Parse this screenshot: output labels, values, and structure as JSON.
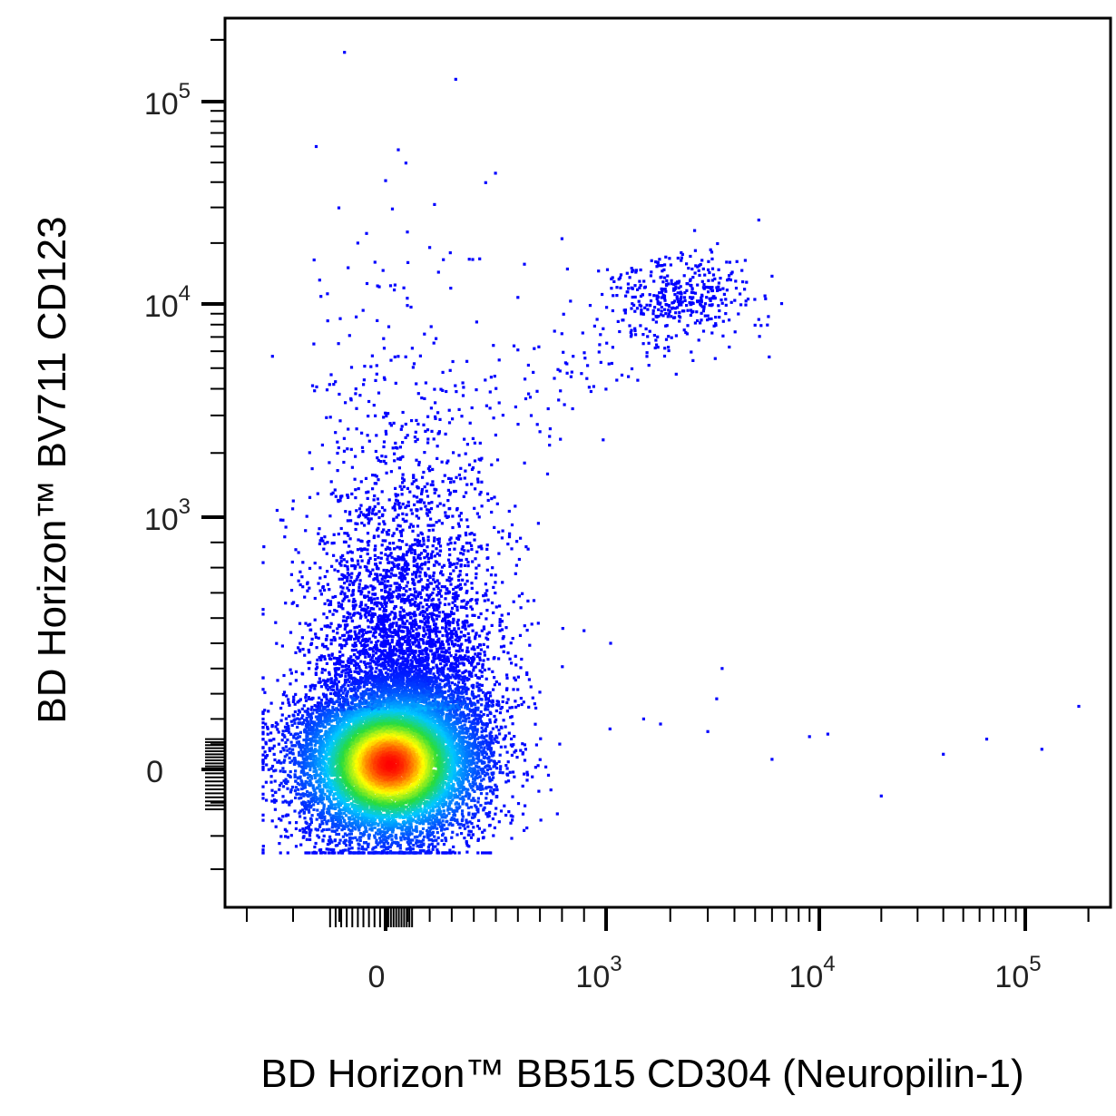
{
  "chart_data": {
    "type": "scatter",
    "title": "",
    "xlabel": "BD Horizon™ BB515 CD304 (Neuropilin-1)",
    "ylabel": "BD Horizon™ BV711 CD123",
    "x_scale": "biexponential",
    "y_scale": "biexponential",
    "xlim": [
      -300,
      250000
    ],
    "ylim": [
      -300,
      250000
    ],
    "x_ticks": [
      {
        "value": 0,
        "base": "0",
        "exp": ""
      },
      {
        "value": 1000,
        "base": "10",
        "exp": "3"
      },
      {
        "value": 10000,
        "base": "10",
        "exp": "4"
      },
      {
        "value": 100000,
        "base": "10",
        "exp": "5"
      }
    ],
    "y_ticks": [
      {
        "value": 0,
        "base": "0",
        "exp": ""
      },
      {
        "value": 1000,
        "base": "10",
        "exp": "3"
      },
      {
        "value": 10000,
        "base": "10",
        "exp": "4"
      },
      {
        "value": 100000,
        "base": "10",
        "exp": "5"
      }
    ],
    "grid": false,
    "legend": "none",
    "color_map": "density (blue-cyan-green-yellow-red)",
    "colors": {
      "low_density": "#0000ff",
      "medium_low": "#00c8ff",
      "medium": "#33dd33",
      "medium_high": "#ffff00",
      "high_density": "#ff0000",
      "axis": "#000000"
    },
    "populations": [
      {
        "name": "",
        "center": [
          20,
          20
        ],
        "count": 14000
      },
      {
        "name": "",
        "center": [
          2200,
          11000
        ],
        "count": 400
      }
    ],
    "outliers": [
      [
        -150,
        60000
      ],
      [
        -60,
        20000
      ],
      [
        200,
        19000
      ],
      [
        800,
        21000
      ],
      [
        5200,
        26000
      ],
      [
        3500,
        400
      ],
      [
        6000,
        40
      ],
      [
        20000,
        -80
      ],
      [
        40000,
        60
      ],
      [
        65000,
        120
      ],
      [
        120000,
        80
      ],
      [
        180000,
        250
      ],
      [
        3000,
        150
      ],
      [
        1800,
        180
      ],
      [
        9000,
        130
      ],
      [
        3300,
        280
      ],
      [
        11000,
        140
      ],
      [
        1500,
        200
      ],
      [
        900,
        550
      ],
      [
        1050,
        500
      ]
    ]
  }
}
